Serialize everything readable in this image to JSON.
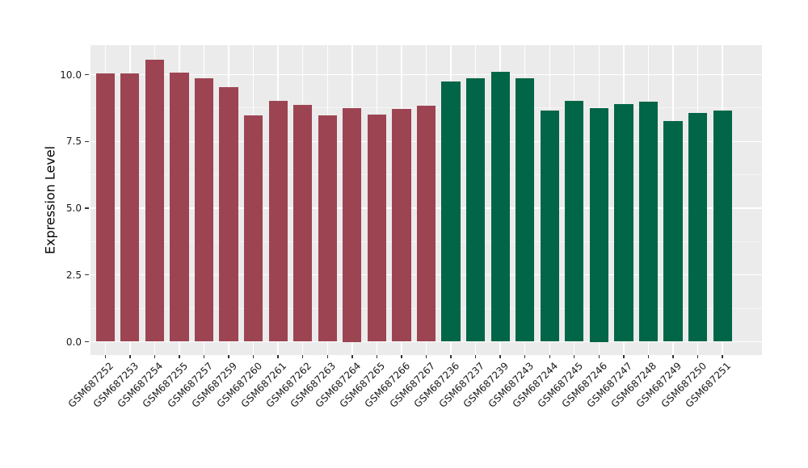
{
  "figure": {
    "background": "#FFFFFF",
    "panel_background": "#EBEBEB",
    "grid_color": "#FFFFFF",
    "tick_mark_color": "#333333",
    "axis_text_color": "#1A1A1A"
  },
  "chart_data": {
    "type": "bar",
    "title": "",
    "xlabel": "",
    "ylabel": "Expression Level",
    "ylim": [
      -0.5,
      11.1
    ],
    "grid": true,
    "legend_position": "none",
    "y_major_ticks": [
      0.0,
      2.5,
      5.0,
      7.5,
      10.0
    ],
    "y_tick_labels": [
      "0.0",
      "2.5",
      "5.0",
      "7.5",
      "10.0"
    ],
    "y_minor_ticks": [
      1.25,
      3.75,
      6.25,
      8.75
    ],
    "categories": [
      "GSM687252",
      "GSM687253",
      "GSM687254",
      "GSM687255",
      "GSM687257",
      "GSM687259",
      "GSM687260",
      "GSM687261",
      "GSM687262",
      "GSM687263",
      "GSM687264",
      "GSM687265",
      "GSM687266",
      "GSM687267",
      "GSM687236",
      "GSM687237",
      "GSM687239",
      "GSM687243",
      "GSM687244",
      "GSM687245",
      "GSM687246",
      "GSM687247",
      "GSM687248",
      "GSM687249",
      "GSM687250",
      "GSM687251"
    ],
    "values": [
      10.05,
      10.05,
      10.56,
      10.08,
      9.87,
      9.53,
      8.47,
      9.02,
      8.86,
      8.48,
      8.75,
      8.51,
      8.72,
      8.84,
      9.75,
      9.87,
      10.11,
      9.86,
      8.66,
      9.02,
      8.75,
      8.9,
      8.99,
      8.27,
      8.57,
      8.66
    ],
    "bar_colors": [
      "#9D4452",
      "#9D4452",
      "#9D4452",
      "#9D4452",
      "#9D4452",
      "#9D4452",
      "#9D4452",
      "#9D4452",
      "#9D4452",
      "#9D4452",
      "#9D4452",
      "#9D4452",
      "#9D4452",
      "#9D4452",
      "#006647",
      "#006647",
      "#006647",
      "#006647",
      "#006647",
      "#006647",
      "#006647",
      "#006647",
      "#006647",
      "#006647",
      "#006647",
      "#006647"
    ]
  }
}
